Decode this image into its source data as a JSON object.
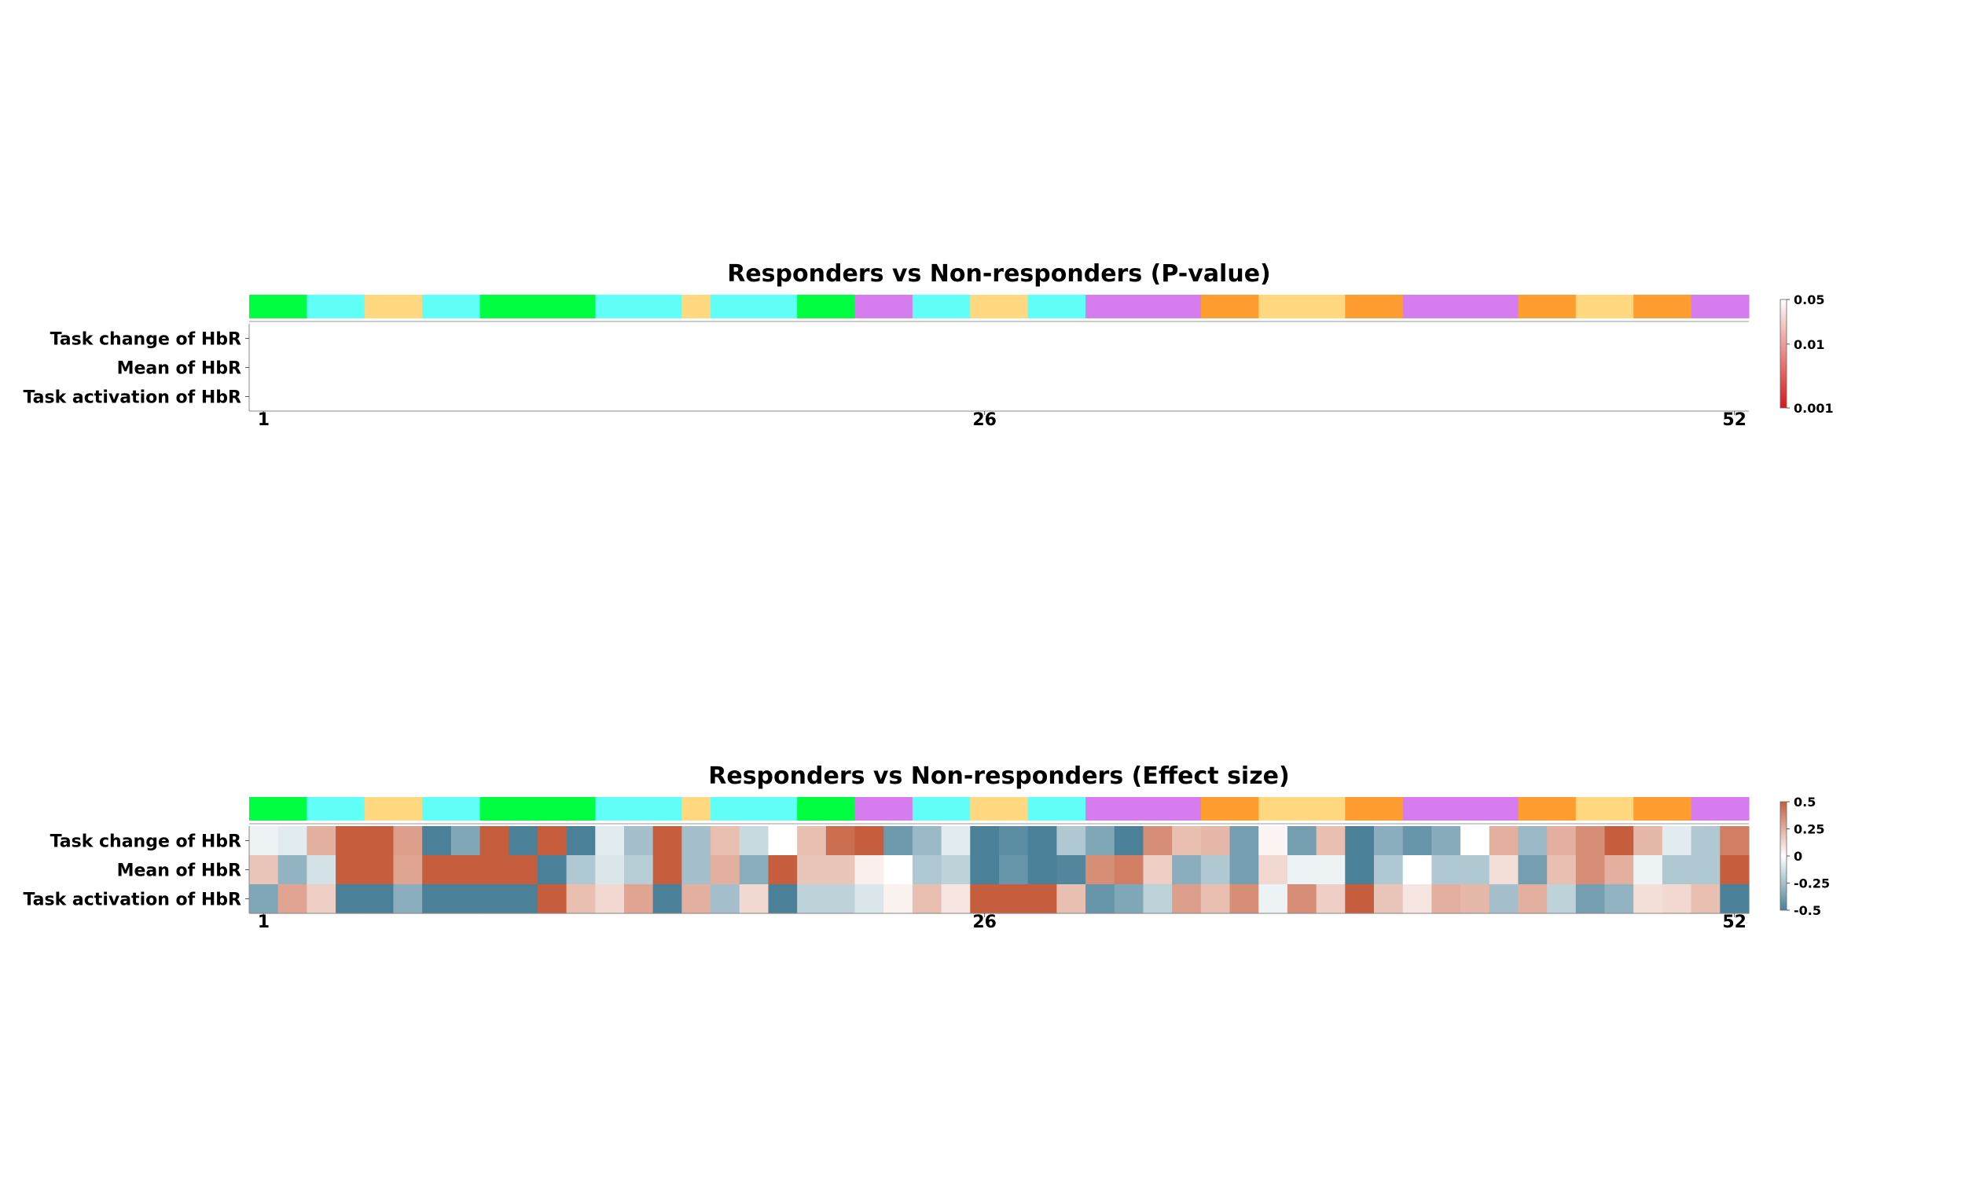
{
  "chart_data": [
    {
      "type": "heatmap",
      "title": "Responders vs Non-responders (P-value)",
      "rows": [
        "Task change of HbR",
        "Mean of HbR",
        "Task activation of HbR"
      ],
      "x_ticks": [
        "1",
        "26",
        "52"
      ],
      "n_channels": 52,
      "values": "all channels blank (no value below the p = 0.05 threshold)",
      "colorbar": {
        "ticks": [
          "0.05",
          "0.01",
          "0.001"
        ],
        "low_color": "#d7191c",
        "high_color": "#ffffff",
        "scale": "log"
      },
      "region_colors": [
        "#00ff40",
        "#00ff40",
        "#60fff8",
        "#60fff8",
        "#ffd880",
        "#ffd880",
        "#60fff8",
        "#60fff8",
        "#00ff40",
        "#00ff40",
        "#00ff40",
        "#00ff40",
        "#60fff8",
        "#60fff8",
        "#60fff8",
        "#ffd880",
        "#60fff8",
        "#60fff8",
        "#60fff8",
        "#00ff40",
        "#00ff40",
        "#d67cef",
        "#d67cef",
        "#60fff8",
        "#60fff8",
        "#ffd880",
        "#ffd880",
        "#60fff8",
        "#60fff8",
        "#d67cef",
        "#d67cef",
        "#d67cef",
        "#d67cef",
        "#ff9d30",
        "#ff9d30",
        "#ffd880",
        "#ffd880",
        "#ffd880",
        "#ff9d30",
        "#ff9d30",
        "#d67cef",
        "#d67cef",
        "#d67cef",
        "#d67cef",
        "#ff9d30",
        "#ff9d30",
        "#ffd880",
        "#ffd880",
        "#ff9d30",
        "#ff9d30",
        "#d67cef",
        "#d67cef"
      ]
    },
    {
      "type": "heatmap",
      "title": "Responders vs Non-responders (Effect size)",
      "rows": [
        "Task change of HbR",
        "Mean of HbR",
        "Task activation of HbR"
      ],
      "x_ticks": [
        "1",
        "26",
        "52"
      ],
      "n_channels": 52,
      "values": [
        [
          -0.05,
          -0.08,
          0.25,
          0.5,
          0.5,
          0.3,
          -0.5,
          -0.35,
          0.5,
          -0.5,
          0.5,
          -0.5,
          -0.08,
          -0.25,
          0.5,
          -0.25,
          0.2,
          -0.15,
          0.0,
          0.2,
          0.45,
          0.5,
          -0.4,
          -0.28,
          -0.08,
          -0.5,
          -0.45,
          -0.5,
          -0.22,
          -0.35,
          -0.5,
          0.35,
          0.2,
          0.22,
          -0.38,
          0.03,
          -0.38,
          0.2,
          -0.5,
          -0.32,
          -0.42,
          -0.33,
          0.0,
          0.25,
          -0.28,
          0.25,
          0.35,
          0.5,
          0.22,
          -0.08,
          -0.22,
          0.4
        ],
        [
          0.18,
          -0.3,
          -0.12,
          0.5,
          0.5,
          0.28,
          0.5,
          0.5,
          0.5,
          0.5,
          -0.5,
          -0.22,
          -0.1,
          -0.2,
          0.5,
          -0.25,
          0.25,
          -0.32,
          0.5,
          0.18,
          0.18,
          0.05,
          0.0,
          -0.22,
          -0.18,
          -0.5,
          -0.42,
          -0.5,
          -0.48,
          0.35,
          0.4,
          0.15,
          -0.32,
          -0.22,
          -0.38,
          0.12,
          -0.05,
          -0.05,
          -0.5,
          -0.22,
          0.0,
          -0.22,
          -0.22,
          0.1,
          -0.38,
          0.2,
          0.35,
          0.25,
          -0.05,
          -0.22,
          -0.22,
          0.5
        ],
        [
          -0.35,
          0.28,
          0.15,
          -0.5,
          -0.5,
          -0.32,
          -0.5,
          -0.5,
          -0.5,
          -0.5,
          0.5,
          0.2,
          0.12,
          0.28,
          -0.5,
          0.25,
          -0.25,
          0.12,
          -0.5,
          -0.18,
          -0.18,
          -0.1,
          0.04,
          0.2,
          0.08,
          0.5,
          0.5,
          0.5,
          0.2,
          -0.42,
          -0.35,
          -0.18,
          0.3,
          0.2,
          0.35,
          -0.05,
          0.35,
          0.15,
          0.5,
          0.18,
          0.08,
          0.25,
          0.22,
          -0.25,
          0.25,
          -0.18,
          -0.38,
          -0.3,
          0.1,
          0.12,
          0.2,
          -0.5
        ]
      ],
      "colorbar": {
        "ticks": [
          "0.5",
          "0.25",
          "0",
          "-0.25",
          "-0.5"
        ],
        "range": [
          -0.5,
          0.5
        ],
        "low_color": "#4a8199",
        "mid_color": "#ffffff",
        "high_color": "#c65e3d"
      },
      "region_colors": [
        "#00ff40",
        "#00ff40",
        "#60fff8",
        "#60fff8",
        "#ffd880",
        "#ffd880",
        "#60fff8",
        "#60fff8",
        "#00ff40",
        "#00ff40",
        "#00ff40",
        "#00ff40",
        "#60fff8",
        "#60fff8",
        "#60fff8",
        "#ffd880",
        "#60fff8",
        "#60fff8",
        "#60fff8",
        "#00ff40",
        "#00ff40",
        "#d67cef",
        "#d67cef",
        "#60fff8",
        "#60fff8",
        "#ffd880",
        "#ffd880",
        "#60fff8",
        "#60fff8",
        "#d67cef",
        "#d67cef",
        "#d67cef",
        "#d67cef",
        "#ff9d30",
        "#ff9d30",
        "#ffd880",
        "#ffd880",
        "#ffd880",
        "#ff9d30",
        "#ff9d30",
        "#d67cef",
        "#d67cef",
        "#d67cef",
        "#d67cef",
        "#ff9d30",
        "#ff9d30",
        "#ffd880",
        "#ffd880",
        "#ff9d30",
        "#ff9d30",
        "#d67cef",
        "#d67cef"
      ]
    }
  ]
}
